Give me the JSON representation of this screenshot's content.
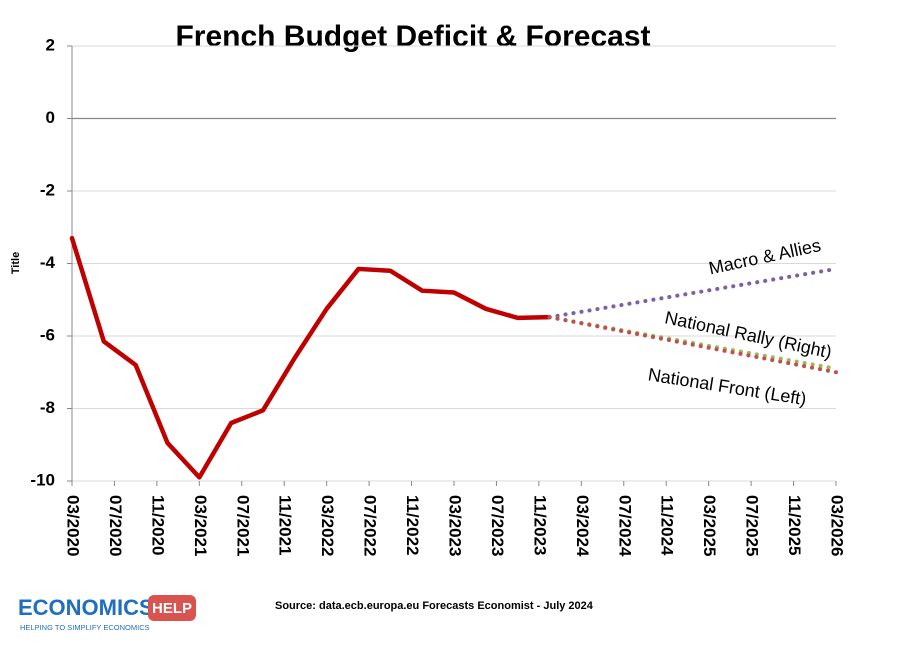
{
  "chart_data": {
    "type": "line",
    "title": "French Budget Deficit & Forecast",
    "y_label": "Title",
    "source": "Source: data.ecb.europa.eu Forecasts Economist - July 2024",
    "logo": {
      "main": "ECONOMICS",
      "badge": "HELP",
      "tagline": "HELPING TO SIMPLIFY ECONOMICS"
    },
    "xlim": [
      "03/2020",
      "03/2026"
    ],
    "xticks": [
      "03/2020",
      "07/2020",
      "11/2020",
      "03/2021",
      "07/2021",
      "11/2021",
      "03/2022",
      "07/2022",
      "11/2022",
      "03/2023",
      "07/2023",
      "11/2023",
      "03/2024",
      "07/2024",
      "11/2024",
      "03/2025",
      "07/2025",
      "11/2025",
      "03/2026"
    ],
    "ylim": [
      -10,
      2
    ],
    "yticks": [
      2,
      0,
      -2,
      -4,
      -6,
      -8,
      -10
    ],
    "grid": true,
    "series": [
      {
        "color": "#c00000",
        "style": "solid",
        "x": [
          "03/2020",
          "06/2020",
          "09/2020",
          "12/2020",
          "03/2021",
          "06/2021",
          "09/2021",
          "12/2021",
          "03/2022",
          "06/2022",
          "09/2022",
          "12/2022",
          "03/2023",
          "06/2023",
          "09/2023",
          "12/2023"
        ],
        "values": [
          -3.3,
          -6.15,
          -6.8,
          -8.95,
          -9.9,
          -8.4,
          -8.05,
          -6.6,
          -5.25,
          -4.15,
          -4.2,
          -4.75,
          -4.8,
          -5.25,
          -5.5,
          -5.48
        ]
      },
      {
        "name": "Macro & Allies",
        "color": "#7b5fa8",
        "style": "dotted",
        "x": [
          "12/2023",
          "03/2026"
        ],
        "values": [
          -5.48,
          -4.15
        ]
      },
      {
        "name": "National Rally (Right)",
        "color": "#9bbb59",
        "style": "dotted",
        "x": [
          "12/2023",
          "03/2026"
        ],
        "values": [
          -5.48,
          -6.9
        ]
      },
      {
        "name": "National Front (Left)",
        "color": "#c0504d",
        "style": "dotted",
        "x": [
          "12/2023",
          "03/2026"
        ],
        "values": [
          -5.48,
          -7.0
        ]
      }
    ]
  }
}
